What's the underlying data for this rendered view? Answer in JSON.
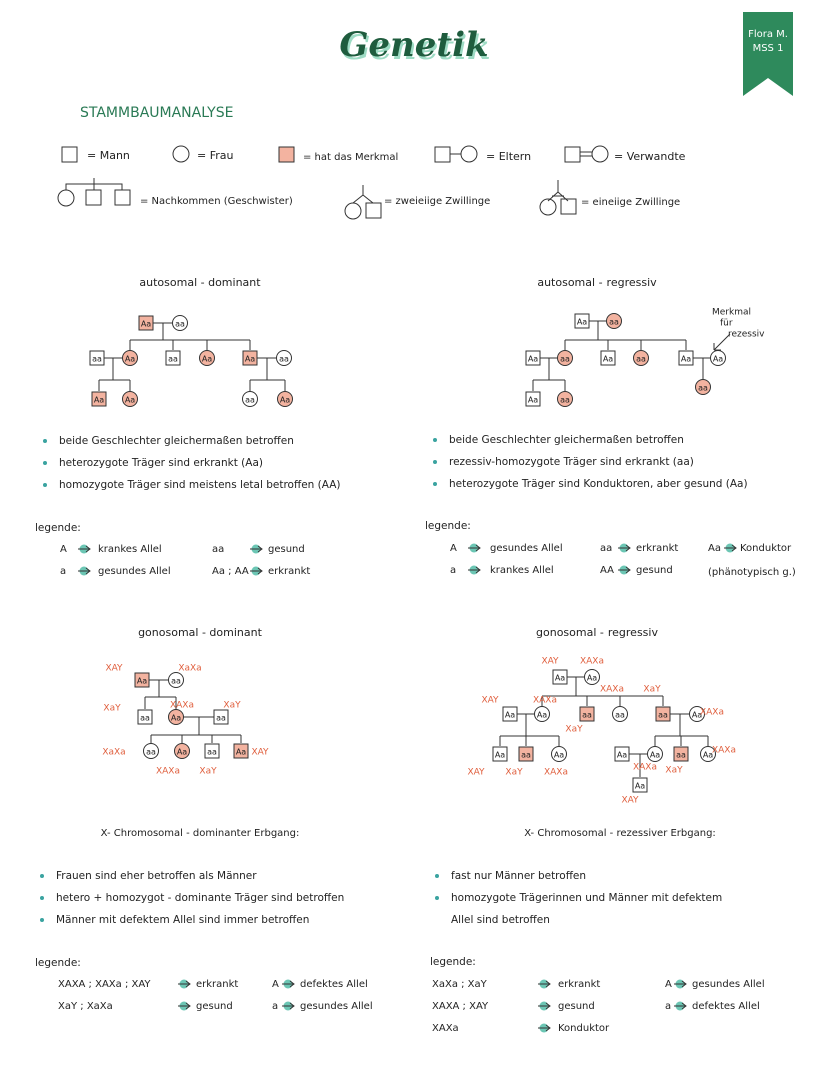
{
  "header": {
    "title": "Genetik",
    "badge": [
      "Flora M.",
      "MSS 1"
    ],
    "section": "STAMMBAUMANALYSE"
  },
  "symbols": [
    "= Mann",
    "= Frau",
    "= hat das Merkmal",
    "= Eltern",
    "= Verwandte",
    "= Nachkommen (Geschwister)",
    "= zweieiige Zwillinge",
    "= eineiige Zwillinge"
  ],
  "panels": [
    {
      "heading": [
        "autosomal - dominant"
      ],
      "nodes": [
        {
          "label": "Aa"
        },
        {
          "label": "aa"
        },
        {
          "label": "aa"
        },
        {
          "label": "Aa"
        },
        {
          "label": "aa"
        },
        {
          "label": "Aa"
        },
        {
          "label": "Aa"
        },
        {
          "label": "aa"
        },
        {
          "label": "Aa"
        },
        {
          "label": "Aa"
        },
        {
          "label": "aa"
        },
        {
          "label": "Aa"
        }
      ],
      "bullets": [
        [
          "beide Geschlechter gleichermaßen betroffen"
        ],
        [
          "heterozygote Träger sind erkrankt (Aa)"
        ],
        [
          "homozygote Träger sind meistens letal betroffen (AA)"
        ]
      ],
      "legend_title": "legende:",
      "legend": [
        {
          "key": "A",
          "value": "krankes Allel"
        },
        {
          "key": "aa",
          "value": "gesund"
        },
        {
          "key": "a",
          "value": "gesundes Allel"
        },
        {
          "key": "Aa ; AA",
          "value": "erkrankt"
        }
      ]
    },
    {
      "heading": [
        "autosomal -",
        "regressiv"
      ],
      "nodes": [
        {
          "label": "Aa"
        },
        {
          "label": "aa"
        },
        {
          "label": "Aa"
        },
        {
          "label": "aa"
        },
        {
          "label": "Aa"
        },
        {
          "label": "aa"
        },
        {
          "label": "Aa"
        },
        {
          "label": "Aa"
        },
        {
          "label": "Aa"
        },
        {
          "label": "aa"
        },
        {
          "label": "aa"
        }
      ],
      "note": [
        "Merkmal",
        "für",
        "rezessiv"
      ],
      "bullets": [
        [
          "beide Geschlechter gleichermaßen betroffen"
        ],
        [
          "rezessiv-homozygote Träger sind erkrankt (aa)"
        ],
        [
          "heterozygote Träger sind Konduktoren, aber gesund (Aa)"
        ]
      ],
      "legend_title": "legende:",
      "legend": [
        {
          "key": "A",
          "value": "gesundes Allel"
        },
        {
          "key": "aa",
          "value": "erkrankt"
        },
        {
          "key": "Aa",
          "value": "Konduktor"
        },
        {
          "key": "a",
          "value": "krankes Allel"
        },
        {
          "key": "AA",
          "value": "gesund"
        }
      ],
      "legend_note": "(phänotypisch g.)"
    },
    {
      "heading": [
        "gonosomal - dominant"
      ],
      "nodes": [
        {
          "label": "Aa",
          "genotype": "XAY"
        },
        {
          "label": "aa",
          "genotype": "XaXa"
        },
        {
          "label": "aa",
          "genotype": "XaY"
        },
        {
          "label": "Aa",
          "genotype": "XAXa"
        },
        {
          "label": "aa",
          "genotype": "XaY"
        },
        {
          "label": "aa",
          "genotype": "XaXa"
        },
        {
          "label": "Aa",
          "genotype": "XAXa"
        },
        {
          "label": "aa",
          "genotype": "XaY"
        },
        {
          "label": "Aa",
          "genotype": "XAY"
        }
      ],
      "caption": "X- Chromosomal - dominanter Erbgang:",
      "bullets": [
        [
          "Frauen sind eher betroffen als Männer"
        ],
        [
          "hetero + homozygot - dominante Träger sind betroffen"
        ],
        [
          "Männer mit defektem Allel sind immer betroffen"
        ]
      ],
      "legend_title": "legende:",
      "legend": [
        {
          "key": "XAXA ; XAXa ; XAY",
          "value": "erkrankt"
        },
        {
          "key": "A",
          "value": "defektes Allel"
        },
        {
          "key": "XaY ; XaXa",
          "value": "gesund"
        },
        {
          "key": "a",
          "value": "gesundes Allel"
        }
      ]
    },
    {
      "heading": [
        "gonosomal -",
        "regressiv"
      ],
      "nodes": [
        {
          "label": "Aa",
          "genotype": "XAY"
        },
        {
          "label": "Aa",
          "genotype": "XAXa"
        },
        {
          "label": "Aa",
          "genotype": "XAY"
        },
        {
          "label": "Aa",
          "genotype": "XAXa"
        },
        {
          "label": "aa",
          "genotype": "XaY"
        },
        {
          "label": "aa",
          "genotype": "XAXa"
        },
        {
          "label": "aa",
          "genotype": "XaY"
        },
        {
          "label": "Aa",
          "genotype": "XAXa"
        },
        {
          "label": "Aa",
          "genotype": "XAY"
        },
        {
          "label": "aa",
          "genotype": "XaY"
        },
        {
          "label": "Aa",
          "genotype": "XAXa"
        },
        {
          "label": "Aa"
        },
        {
          "label": "Aa",
          "genotype": "XAXa"
        },
        {
          "label": "aa",
          "genotype": "XaY"
        },
        {
          "label": "Aa",
          "genotype": "XAXa"
        },
        {
          "label": "Aa",
          "genotype": "XAY"
        }
      ],
      "caption": "X- Chromosomal - rezessiver Erbgang:",
      "bullets": [
        [
          "fast nur Männer betroffen"
        ],
        [
          "homozygote Trägerinnen und Männer mit defektem",
          "Allel sind betroffen"
        ]
      ],
      "legend_title": "legende:",
      "legend": [
        {
          "key": "XaXa ; XaY",
          "value": "erkrankt"
        },
        {
          "key": "XAXA ; XAY",
          "value": "gesund"
        },
        {
          "key": "XAXa",
          "value": "Konduktor"
        },
        {
          "key": "A",
          "value": "gesundes Allel"
        },
        {
          "key": "a",
          "value": "defektes Allel"
        }
      ]
    }
  ]
}
